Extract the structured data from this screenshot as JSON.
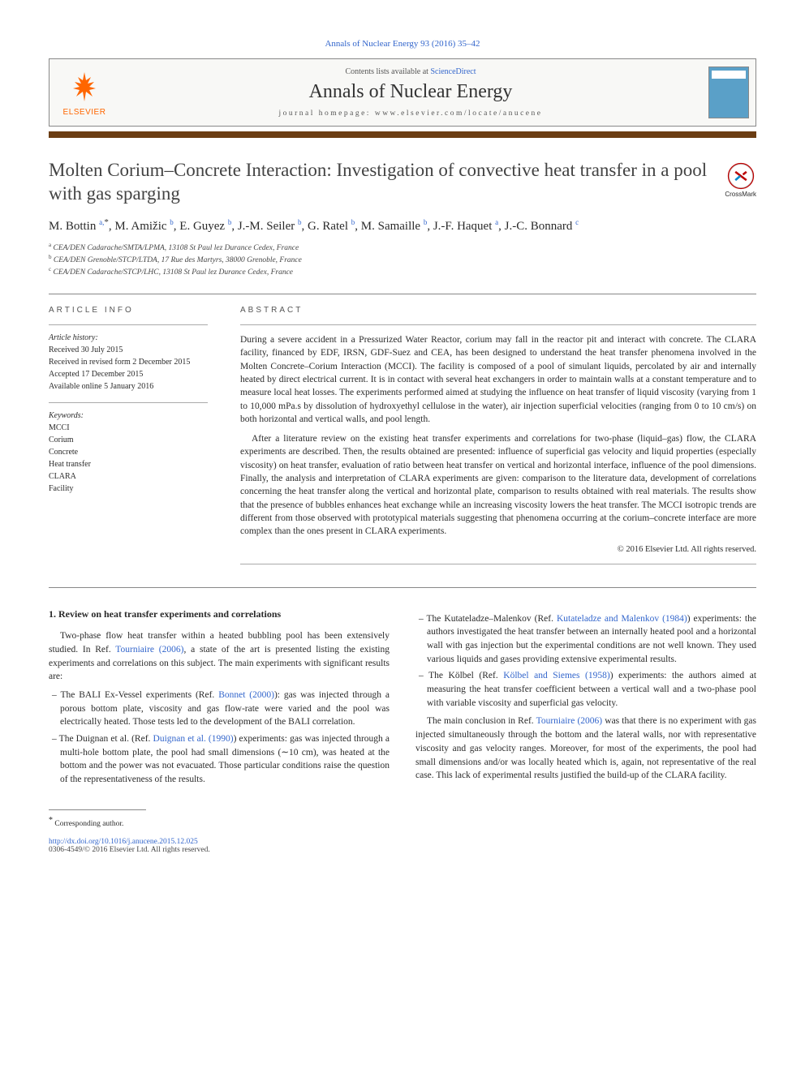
{
  "journal_ref": "Annals of Nuclear Energy 93 (2016) 35–42",
  "header": {
    "contents": "Contents lists available at ",
    "contents_link": "ScienceDirect",
    "journal": "Annals of Nuclear Energy",
    "homepage_label": "journal homepage: ",
    "homepage": "www.elsevier.com/locate/anucene",
    "publisher": "ELSEVIER"
  },
  "article": {
    "title": "Molten Corium–Concrete Interaction: Investigation of convective heat transfer in a pool with gas sparging",
    "crossmark": "CrossMark",
    "authors_html": [
      {
        "name": "M. Bottin",
        "sup": "a,",
        "star": "*"
      },
      {
        "name": "M. Amižic",
        "sup": "b"
      },
      {
        "name": "E. Guyez",
        "sup": "b"
      },
      {
        "name": "J.-M. Seiler",
        "sup": "b"
      },
      {
        "name": "G. Ratel",
        "sup": "b"
      },
      {
        "name": "M. Samaille",
        "sup": "b"
      },
      {
        "name": "J.-F. Haquet",
        "sup": "a"
      },
      {
        "name": "J.-C. Bonnard",
        "sup": "c"
      }
    ],
    "affiliations": [
      {
        "sup": "a",
        "text": "CEA/DEN Cadarache/SMTA/LPMA, 13108 St Paul lez Durance Cedex, France"
      },
      {
        "sup": "b",
        "text": "CEA/DEN Grenoble/STCP/LTDA, 17 Rue des Martyrs, 38000 Grenoble, France"
      },
      {
        "sup": "c",
        "text": "CEA/DEN Cadarache/STCP/LHC, 13108 St Paul lez Durance Cedex, France"
      }
    ]
  },
  "info": {
    "head": "ARTICLE INFO",
    "history_label": "Article history:",
    "history": [
      "Received 30 July 2015",
      "Received in revised form 2 December 2015",
      "Accepted 17 December 2015",
      "Available online 5 January 2016"
    ],
    "keywords_label": "Keywords:",
    "keywords": [
      "MCCI",
      "Corium",
      "Concrete",
      "Heat transfer",
      "CLARA",
      "Facility"
    ]
  },
  "abstract": {
    "head": "ABSTRACT",
    "p1": "During a severe accident in a Pressurized Water Reactor, corium may fall in the reactor pit and interact with concrete. The CLARA facility, financed by EDF, IRSN, GDF-Suez and CEA, has been designed to understand the heat transfer phenomena involved in the Molten Concrete–Corium Interaction (MCCI). The facility is composed of a pool of simulant liquids, percolated by air and internally heated by direct electrical current. It is in contact with several heat exchangers in order to maintain walls at a constant temperature and to measure local heat losses. The experiments performed aimed at studying the influence on heat transfer of liquid viscosity (varying from 1 to 10,000 mPa.s by dissolution of hydroxyethyl cellulose in the water), air injection superficial velocities (ranging from 0 to 10 cm/s) on both horizontal and vertical walls, and pool length.",
    "p2": "After a literature review on the existing heat transfer experiments and correlations for two-phase (liquid–gas) flow, the CLARA experiments are described. Then, the results obtained are presented: influence of superficial gas velocity and liquid properties (especially viscosity) on heat transfer, evaluation of ratio between heat transfer on vertical and horizontal interface, influence of the pool dimensions. Finally, the analysis and interpretation of CLARA experiments are given: comparison to the literature data, development of correlations concerning the heat transfer along the vertical and horizontal plate, comparison to results obtained with real materials. The results show that the presence of bubbles enhances heat exchange while an increasing viscosity lowers the heat transfer. The MCCI isotropic trends are different from those observed with prototypical materials suggesting that phenomena occurring at the corium–concrete interface are more complex than the ones present in CLARA experiments.",
    "copyright": "© 2016 Elsevier Ltd. All rights reserved."
  },
  "body": {
    "sec1_title": "1. Review on heat transfer experiments and correlations",
    "left_intro": "Two-phase flow heat transfer within a heated bubbling pool has been extensively studied. In Ref. ",
    "left_intro_ref": "Tourniaire (2006)",
    "left_intro2": ", a state of the art is presented listing the existing experiments and correlations on this subject. The main experiments with significant results are:",
    "left_items": [
      {
        "pre": "The BALI Ex-Vessel experiments (Ref. ",
        "ref": "Bonnet (2000)",
        "post": "): gas was injected through a porous bottom plate, viscosity and gas flow-rate were varied and the pool was electrically heated. Those tests led to the development of the BALI correlation."
      },
      {
        "pre": "The Duignan et al. (Ref. ",
        "ref": "Duignan et al. (1990)",
        "post": ") experiments: gas was injected through a multi-hole bottom plate, the pool had small dimensions (∼10 cm), was heated at the bottom and the power was not evacuated. Those particular conditions raise the question of the representativeness of the results."
      }
    ],
    "right_items": [
      {
        "pre": "The Kutateladze–Malenkov (Ref. ",
        "ref": "Kutateladze and Malenkov (1984)",
        "post": ") experiments: the authors investigated the heat transfer between an internally heated pool and a horizontal wall with gas injection but the experimental conditions are not well known. They used various liquids and gases providing extensive experimental results."
      },
      {
        "pre": "The Kölbel (Ref. ",
        "ref": "Kölbel and Siemes (1958)",
        "post": ") experiments: the authors aimed at measuring the heat transfer coefficient between a vertical wall and a two-phase pool with variable viscosity and superficial gas velocity."
      }
    ],
    "right_closing_pre": "The main conclusion in Ref. ",
    "right_closing_ref": "Tourniaire (2006)",
    "right_closing_post": " was that there is no experiment with gas injected simultaneously through the bottom and the lateral walls, nor with representative viscosity and gas velocity ranges. Moreover, for most of the experiments, the pool had small dimensions and/or was locally heated which is, again, not representative of the real case. This lack of experimental results justified the build-up of the CLARA facility."
  },
  "footer": {
    "corr": "Corresponding author.",
    "doi": "http://dx.doi.org/10.1016/j.anucene.2015.12.025",
    "issn": "0306-4549/© 2016 Elsevier Ltd. All rights reserved."
  },
  "colors": {
    "link": "#3366cc",
    "accent_bar": "#6b3d13",
    "elsevier_orange": "#ff6600"
  }
}
